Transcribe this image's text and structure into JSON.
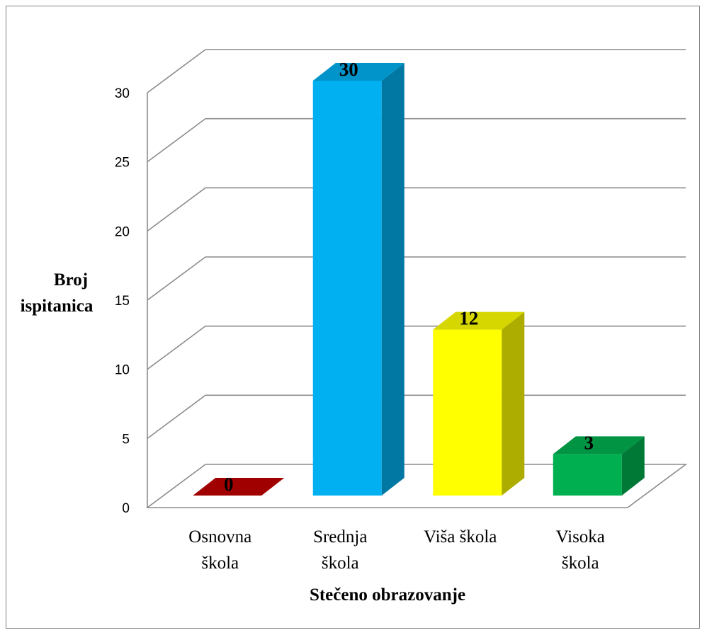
{
  "chart_data": {
    "type": "bar",
    "categories": [
      [
        "Osnovna",
        "škola"
      ],
      [
        "Srednja",
        "škola"
      ],
      [
        "Viša škola"
      ],
      [
        "Visoka",
        "škola"
      ]
    ],
    "values": [
      0,
      30,
      12,
      3
    ],
    "data_labels": [
      "0",
      "30",
      "12",
      "3"
    ],
    "colors": [
      "#c00000",
      "#00b0f0",
      "#ffff00",
      "#00b050"
    ],
    "xlabel": "Stečeno obrazovanje",
    "ylabel": [
      "Broj",
      "ispitanica"
    ],
    "ylim": [
      0,
      30
    ],
    "yticks": [
      "0",
      "5",
      "10",
      "15",
      "20",
      "25",
      "30"
    ],
    "grid": true,
    "style": "3d-column",
    "legend": "none"
  }
}
